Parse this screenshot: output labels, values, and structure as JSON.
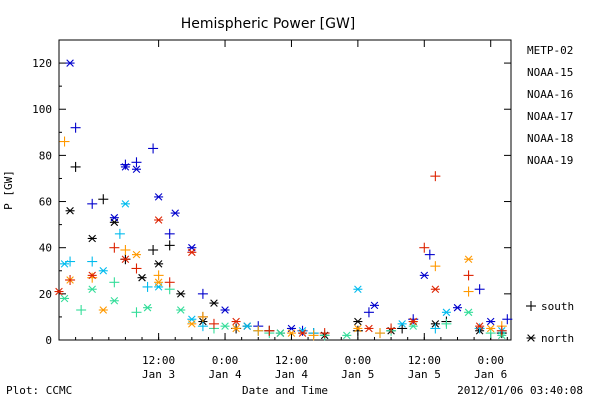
{
  "chart_data": {
    "type": "scatter",
    "title": "Hemispheric Power [GW]",
    "xlabel": "Date and Time",
    "ylabel": "P [GW]",
    "ylim": [
      0,
      130
    ],
    "xlim": [
      "2012-01-02 18:00",
      "2012-01-06 03:40"
    ],
    "yticks": [
      0,
      20,
      40,
      60,
      80,
      100,
      120
    ],
    "xticks": [
      {
        "at": "2012-01-03 12:00",
        "time": "12:00",
        "date": "Jan 3"
      },
      {
        "at": "2012-01-04 00:00",
        "time": "0:00",
        "date": "Jan 4"
      },
      {
        "at": "2012-01-04 12:00",
        "time": "12:00",
        "date": "Jan 4"
      },
      {
        "at": "2012-01-05 00:00",
        "time": "0:00",
        "date": "Jan 5"
      },
      {
        "at": "2012-01-05 12:00",
        "time": "12:00",
        "date": "Jan 5"
      },
      {
        "at": "2012-01-06 00:00",
        "time": "0:00",
        "date": "Jan 6"
      }
    ],
    "legend_position": "right",
    "grid": false,
    "series": [
      {
        "name": "METP-02",
        "color": "#000000",
        "south": [
          [
            "2012-01-02 21:00",
            75
          ],
          [
            "2012-01-03 02:00",
            61
          ],
          [
            "2012-01-03 06:00",
            35
          ],
          [
            "2012-01-03 11:00",
            39
          ],
          [
            "2012-01-03 14:00",
            41
          ],
          [
            "2012-01-03 20:00",
            10
          ],
          [
            "2012-01-04 02:00",
            5
          ],
          [
            "2012-01-04 08:00",
            4
          ],
          [
            "2012-01-04 16:00",
            3
          ],
          [
            "2012-01-05 00:00",
            4
          ],
          [
            "2012-01-05 08:00",
            5
          ],
          [
            "2012-01-05 16:00",
            8
          ],
          [
            "2012-01-06 02:00",
            3
          ]
        ],
        "north": [
          [
            "2012-01-02 20:00",
            56
          ],
          [
            "2012-01-03 00:00",
            44
          ],
          [
            "2012-01-03 04:00",
            51
          ],
          [
            "2012-01-03 09:00",
            27
          ],
          [
            "2012-01-03 12:00",
            33
          ],
          [
            "2012-01-03 16:00",
            20
          ],
          [
            "2012-01-03 20:00",
            8
          ],
          [
            "2012-01-03 22:00",
            16
          ],
          [
            "2012-01-04 04:00",
            6
          ],
          [
            "2012-01-04 10:00",
            3
          ],
          [
            "2012-01-04 18:00",
            2
          ],
          [
            "2012-01-05 00:00",
            8
          ],
          [
            "2012-01-05 06:00",
            4
          ],
          [
            "2012-01-05 14:00",
            7
          ],
          [
            "2012-01-05 22:00",
            4
          ]
        ]
      },
      {
        "name": "NOAA-15",
        "color": "#0000cc",
        "south": [
          [
            "2012-01-02 21:00",
            92
          ],
          [
            "2012-01-03 00:00",
            59
          ],
          [
            "2012-01-03 06:00",
            76
          ],
          [
            "2012-01-03 08:00",
            77
          ],
          [
            "2012-01-03 11:00",
            83
          ],
          [
            "2012-01-03 14:00",
            46
          ],
          [
            "2012-01-03 20:00",
            20
          ],
          [
            "2012-01-04 06:00",
            6
          ],
          [
            "2012-01-04 14:00",
            4
          ],
          [
            "2012-01-05 02:00",
            12
          ],
          [
            "2012-01-05 10:00",
            9
          ],
          [
            "2012-01-05 13:00",
            37
          ],
          [
            "2012-01-05 22:00",
            22
          ],
          [
            "2012-01-06 03:00",
            9
          ]
        ],
        "north": [
          [
            "2012-01-02 20:00",
            120
          ],
          [
            "2012-01-03 04:00",
            53
          ],
          [
            "2012-01-03 06:00",
            75
          ],
          [
            "2012-01-03 08:00",
            74
          ],
          [
            "2012-01-03 12:00",
            62
          ],
          [
            "2012-01-03 15:00",
            55
          ],
          [
            "2012-01-03 18:00",
            40
          ],
          [
            "2012-01-04 00:00",
            13
          ],
          [
            "2012-01-04 12:00",
            5
          ],
          [
            "2012-01-05 03:00",
            15
          ],
          [
            "2012-01-05 12:00",
            28
          ],
          [
            "2012-01-05 18:00",
            14
          ],
          [
            "2012-01-06 00:00",
            8
          ]
        ]
      },
      {
        "name": "NOAA-16",
        "color": "#00bbee",
        "south": [
          [
            "2012-01-02 20:00",
            34
          ],
          [
            "2012-01-03 00:00",
            34
          ],
          [
            "2012-01-03 05:00",
            46
          ],
          [
            "2012-01-03 10:00",
            23
          ],
          [
            "2012-01-03 20:00",
            6
          ],
          [
            "2012-01-04 06:00",
            4
          ],
          [
            "2012-01-04 16:00",
            3
          ],
          [
            "2012-01-05 04:00",
            3
          ],
          [
            "2012-01-05 14:00",
            5
          ],
          [
            "2012-01-05 22:00",
            5
          ]
        ],
        "north": [
          [
            "2012-01-02 19:00",
            33
          ],
          [
            "2012-01-03 02:00",
            30
          ],
          [
            "2012-01-03 06:00",
            59
          ],
          [
            "2012-01-03 12:00",
            23
          ],
          [
            "2012-01-03 18:00",
            9
          ],
          [
            "2012-01-04 04:00",
            6
          ],
          [
            "2012-01-04 14:00",
            4
          ],
          [
            "2012-01-05 00:00",
            22
          ],
          [
            "2012-01-05 08:00",
            7
          ],
          [
            "2012-01-05 16:00",
            12
          ],
          [
            "2012-01-06 02:00",
            4
          ]
        ]
      },
      {
        "name": "NOAA-17",
        "color": "#33dd99",
        "south": [
          [
            "2012-01-02 22:00",
            13
          ],
          [
            "2012-01-03 04:00",
            25
          ],
          [
            "2012-01-03 08:00",
            12
          ],
          [
            "2012-01-03 14:00",
            22
          ],
          [
            "2012-01-03 22:00",
            5
          ],
          [
            "2012-01-04 08:00",
            3
          ],
          [
            "2012-01-04 18:00",
            2
          ],
          [
            "2012-01-05 06:00",
            4
          ],
          [
            "2012-01-05 16:00",
            7
          ],
          [
            "2012-01-06 00:00",
            3
          ]
        ],
        "north": [
          [
            "2012-01-02 19:00",
            18
          ],
          [
            "2012-01-03 00:00",
            22
          ],
          [
            "2012-01-03 04:00",
            17
          ],
          [
            "2012-01-03 10:00",
            14
          ],
          [
            "2012-01-03 16:00",
            13
          ],
          [
            "2012-01-04 00:00",
            6
          ],
          [
            "2012-01-04 10:00",
            3
          ],
          [
            "2012-01-04 22:00",
            2
          ],
          [
            "2012-01-05 10:00",
            6
          ],
          [
            "2012-01-05 20:00",
            12
          ],
          [
            "2012-01-06 02:00",
            2
          ]
        ]
      },
      {
        "name": "NOAA-18",
        "color": "#ff9900",
        "south": [
          [
            "2012-01-02 19:00",
            86
          ],
          [
            "2012-01-03 00:00",
            27
          ],
          [
            "2012-01-03 06:00",
            39
          ],
          [
            "2012-01-03 12:00",
            28
          ],
          [
            "2012-01-03 20:00",
            10
          ],
          [
            "2012-01-04 06:00",
            4
          ],
          [
            "2012-01-04 16:00",
            2
          ],
          [
            "2012-01-05 04:00",
            3
          ],
          [
            "2012-01-05 14:00",
            32
          ],
          [
            "2012-01-05 20:00",
            21
          ],
          [
            "2012-01-06 02:00",
            6
          ]
        ],
        "north": [
          [
            "2012-01-02 20:00",
            26
          ],
          [
            "2012-01-03 02:00",
            13
          ],
          [
            "2012-01-03 08:00",
            37
          ],
          [
            "2012-01-03 12:00",
            25
          ],
          [
            "2012-01-03 18:00",
            7
          ],
          [
            "2012-01-04 02:00",
            5
          ],
          [
            "2012-01-04 12:00",
            3
          ],
          [
            "2012-01-05 00:00",
            5
          ],
          [
            "2012-01-05 10:00",
            8
          ],
          [
            "2012-01-05 20:00",
            35
          ],
          [
            "2012-01-06 00:00",
            5
          ]
        ]
      },
      {
        "name": "NOAA-19",
        "color": "#dd2200",
        "south": [
          [
            "2012-01-02 20:00",
            26
          ],
          [
            "2012-01-03 04:00",
            40
          ],
          [
            "2012-01-03 08:00",
            31
          ],
          [
            "2012-01-03 14:00",
            25
          ],
          [
            "2012-01-03 22:00",
            7
          ],
          [
            "2012-01-04 08:00",
            4
          ],
          [
            "2012-01-04 18:00",
            3
          ],
          [
            "2012-01-05 06:00",
            5
          ],
          [
            "2012-01-05 12:00",
            40
          ],
          [
            "2012-01-05 14:00",
            71
          ],
          [
            "2012-01-05 20:00",
            28
          ],
          [
            "2012-01-06 02:00",
            4
          ]
        ],
        "north": [
          [
            "2012-01-02 18:00",
            21
          ],
          [
            "2012-01-03 00:00",
            28
          ],
          [
            "2012-01-03 06:00",
            35
          ],
          [
            "2012-01-03 12:00",
            52
          ],
          [
            "2012-01-03 18:00",
            38
          ],
          [
            "2012-01-04 02:00",
            8
          ],
          [
            "2012-01-04 14:00",
            3
          ],
          [
            "2012-01-05 02:00",
            5
          ],
          [
            "2012-01-05 10:00",
            8
          ],
          [
            "2012-01-05 14:00",
            22
          ],
          [
            "2012-01-05 22:00",
            6
          ]
        ]
      }
    ]
  },
  "legend_markers": {
    "south": "south",
    "north": "north"
  },
  "footer": {
    "left": "Plot: CCMC",
    "center": "Date and Time",
    "right": "2012/01/06 03:40:08"
  }
}
